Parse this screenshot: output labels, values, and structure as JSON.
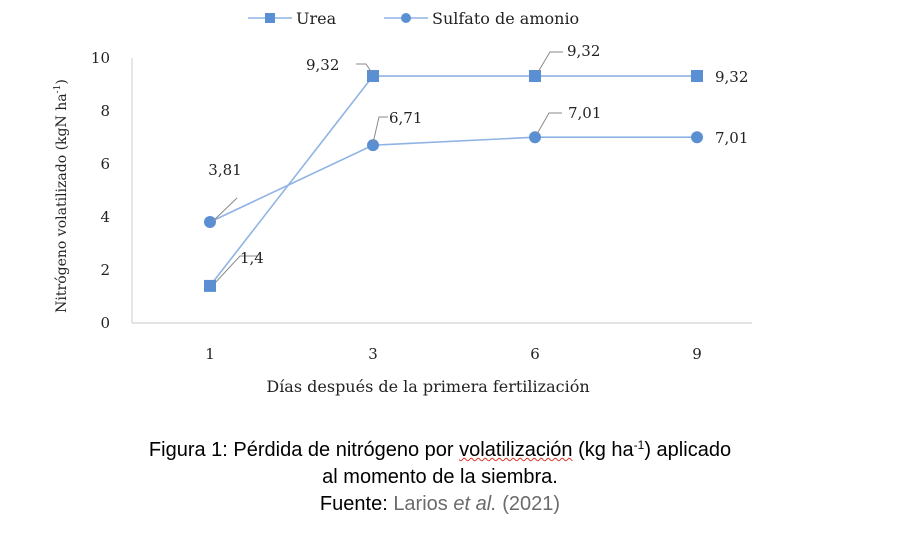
{
  "chart_data": {
    "type": "line",
    "categories": [
      "1",
      "3",
      "6",
      "9"
    ],
    "ylabel_main": "Nitrógeno volatilizado (kgN ha",
    "ylabel_sup": "-1",
    "ylabel_end": ")",
    "xlabel": "Días después de la primera fertilización",
    "ylim": [
      0,
      10
    ],
    "yticks": [
      "0",
      "2",
      "4",
      "6",
      "8",
      "10"
    ],
    "legend_position": "top",
    "grid": false,
    "series": [
      {
        "name": "Urea",
        "values": [
          1.4,
          9.32,
          9.32,
          9.32
        ],
        "labels": [
          "1,4",
          "9,32",
          "9,32",
          "9,32"
        ],
        "marker": "square",
        "color": "#5b8fd3"
      },
      {
        "name": "Sulfato de amonio",
        "values": [
          3.81,
          6.71,
          7.01,
          7.01
        ],
        "labels": [
          "3,81",
          "6,71",
          "7,01",
          "7,01"
        ],
        "marker": "circle",
        "color": "#5b8fd3"
      }
    ]
  },
  "caption": {
    "line1_pre": "Figura 1: Pérdida de nitrógeno por ",
    "line1_flagged": "volatilización",
    "line1_mid": " (kg ha",
    "line1_sup": "-1",
    "line1_post": ") aplicado",
    "line2": "al momento de la siembra.",
    "line3_pre": "Fuente: ",
    "line3_author": "Larios ",
    "line3_etal": "et al.",
    "line3_year": " (2021)"
  }
}
